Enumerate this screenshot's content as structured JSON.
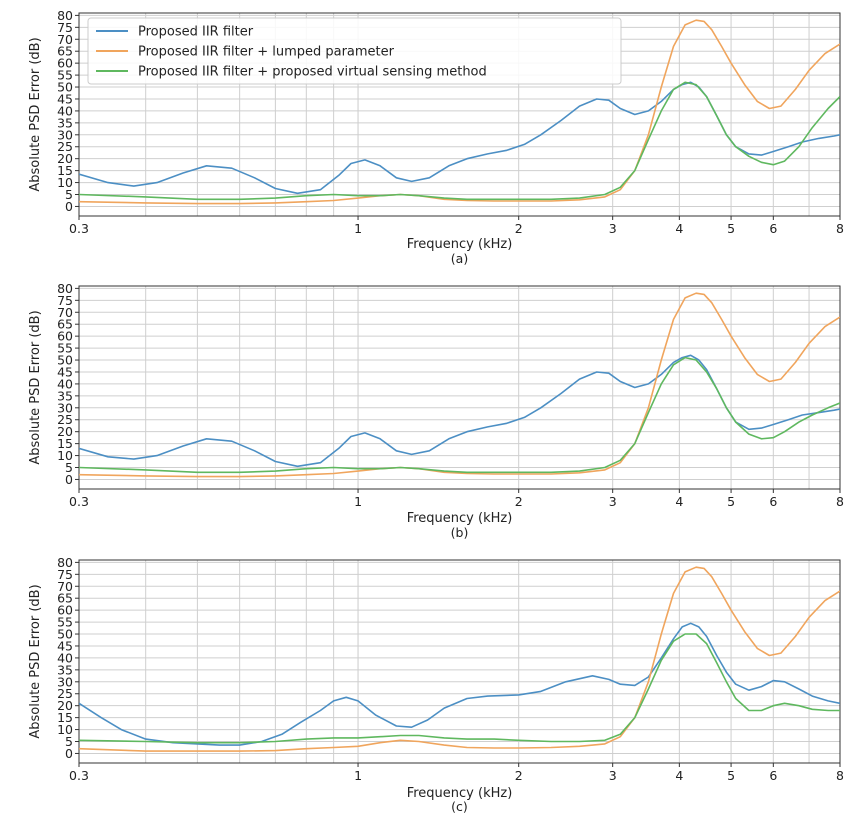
{
  "chart_data": [
    {
      "type": "line",
      "panel_label": "(a)",
      "xlabel": "Frequency (kHz)",
      "ylabel": "Absolute PSD Error (dB)",
      "xscale": "log",
      "xlim": [
        0.3,
        8
      ],
      "ylim": [
        -4,
        81
      ],
      "x_ticks": [
        "0.3",
        "1",
        "2",
        "3",
        "4",
        "5",
        "6",
        "8"
      ],
      "y_ticks": [
        0,
        5,
        10,
        15,
        20,
        25,
        30,
        35,
        40,
        45,
        50,
        55,
        60,
        65,
        70,
        75,
        80
      ],
      "grid": true,
      "legend": {
        "position": "top-left",
        "entries": [
          "Proposed IIR filter",
          "Proposed IIR filter + lumped parameter",
          " Proposed IIR filter + proposed virtual sensing method"
        ]
      },
      "series": [
        {
          "name": "Proposed IIR filter",
          "color": "#4c8fc4",
          "x": [
            0.3,
            0.34,
            0.38,
            0.42,
            0.47,
            0.52,
            0.58,
            0.64,
            0.7,
            0.77,
            0.85,
            0.92,
            0.97,
            1.03,
            1.1,
            1.18,
            1.26,
            1.36,
            1.48,
            1.6,
            1.75,
            1.9,
            2.05,
            2.2,
            2.4,
            2.6,
            2.8,
            2.95,
            3.1,
            3.3,
            3.5,
            3.7,
            3.9,
            4.05,
            4.2,
            4.35,
            4.5,
            4.7,
            4.9,
            5.1,
            5.4,
            5.7,
            6.0,
            6.4,
            6.8,
            7.3,
            7.8,
            8.0
          ],
          "y": [
            13.5,
            10,
            8.5,
            10,
            14,
            17,
            16,
            12,
            7.5,
            5.5,
            7,
            13,
            18,
            19.5,
            17,
            12,
            10.5,
            12,
            17,
            20,
            22,
            23.5,
            26,
            30,
            36,
            42,
            45,
            44.5,
            41,
            38.5,
            40,
            44,
            49,
            51,
            52,
            50,
            46,
            38,
            30,
            25,
            22,
            21.5,
            23,
            25,
            27,
            28.5,
            29.5,
            30
          ]
        },
        {
          "name": "Proposed IIR filter + lumped parameter",
          "color": "#f0a55d",
          "x": [
            0.3,
            0.4,
            0.5,
            0.6,
            0.7,
            0.8,
            0.9,
            1.0,
            1.1,
            1.2,
            1.3,
            1.45,
            1.6,
            1.8,
            2.0,
            2.3,
            2.6,
            2.9,
            3.1,
            3.3,
            3.5,
            3.7,
            3.9,
            4.1,
            4.3,
            4.45,
            4.6,
            4.8,
            5.0,
            5.3,
            5.6,
            5.9,
            6.2,
            6.6,
            7.0,
            7.5,
            8.0
          ],
          "y": [
            2,
            1.5,
            1.2,
            1.2,
            1.5,
            2,
            2.5,
            3.5,
            4.5,
            5,
            4.5,
            3,
            2.5,
            2.3,
            2.3,
            2.3,
            2.8,
            4,
            7,
            15,
            30,
            50,
            67,
            76,
            78,
            77.5,
            74,
            67,
            60,
            51,
            44,
            41,
            42,
            49,
            57,
            64,
            68
          ]
        },
        {
          "name": " Proposed IIR filter + proposed virtual sensing method",
          "color": "#5fb85f",
          "x": [
            0.3,
            0.4,
            0.5,
            0.6,
            0.7,
            0.8,
            0.9,
            1.0,
            1.1,
            1.2,
            1.3,
            1.45,
            1.6,
            1.8,
            2.0,
            2.3,
            2.6,
            2.9,
            3.1,
            3.3,
            3.5,
            3.7,
            3.9,
            4.1,
            4.3,
            4.5,
            4.7,
            4.9,
            5.1,
            5.4,
            5.7,
            6.0,
            6.3,
            6.7,
            7.1,
            7.6,
            8.0
          ],
          "y": [
            5,
            4,
            3,
            3,
            3.5,
            4.5,
            5,
            4.5,
            4.5,
            5,
            4.5,
            3.5,
            3,
            3,
            3,
            3,
            3.5,
            5,
            8,
            15,
            28,
            40,
            49,
            52,
            51,
            46,
            38,
            30,
            25,
            21,
            18.5,
            17.5,
            19,
            25,
            33,
            41,
            46
          ]
        }
      ]
    },
    {
      "type": "line",
      "panel_label": "(b)",
      "xlabel": "Frequency (kHz)",
      "ylabel": "Absolute PSD Error (dB)",
      "xscale": "log",
      "xlim": [
        0.3,
        8
      ],
      "ylim": [
        -4,
        81
      ],
      "x_ticks": [
        "0.3",
        "1",
        "2",
        "3",
        "4",
        "5",
        "6",
        "8"
      ],
      "y_ticks": [
        0,
        5,
        10,
        15,
        20,
        25,
        30,
        35,
        40,
        45,
        50,
        55,
        60,
        65,
        70,
        75,
        80
      ],
      "grid": true,
      "series": [
        {
          "name": "Proposed IIR filter",
          "color": "#4c8fc4",
          "x": [
            0.3,
            0.34,
            0.38,
            0.42,
            0.47,
            0.52,
            0.58,
            0.64,
            0.7,
            0.77,
            0.85,
            0.92,
            0.97,
            1.03,
            1.1,
            1.18,
            1.26,
            1.36,
            1.48,
            1.6,
            1.75,
            1.9,
            2.05,
            2.2,
            2.4,
            2.6,
            2.8,
            2.95,
            3.1,
            3.3,
            3.5,
            3.7,
            3.9,
            4.05,
            4.2,
            4.35,
            4.5,
            4.7,
            4.9,
            5.1,
            5.4,
            5.7,
            6.0,
            6.4,
            6.8,
            7.3,
            7.8,
            8.0
          ],
          "y": [
            13,
            9.5,
            8.5,
            10,
            14,
            17,
            16,
            12,
            7.5,
            5.5,
            7,
            13,
            18,
            19.5,
            17,
            12,
            10.5,
            12,
            17,
            20,
            22,
            23.5,
            26,
            30,
            36,
            42,
            45,
            44.5,
            41,
            38.5,
            40,
            44,
            49,
            51,
            52,
            50,
            46,
            38,
            30,
            24,
            21,
            21.5,
            23,
            25,
            27,
            28,
            29,
            29.5
          ]
        },
        {
          "name": "Proposed IIR filter + lumped parameter",
          "color": "#f0a55d",
          "x": [
            0.3,
            0.4,
            0.5,
            0.6,
            0.7,
            0.8,
            0.9,
            1.0,
            1.1,
            1.2,
            1.3,
            1.45,
            1.6,
            1.8,
            2.0,
            2.3,
            2.6,
            2.9,
            3.1,
            3.3,
            3.5,
            3.7,
            3.9,
            4.1,
            4.3,
            4.45,
            4.6,
            4.8,
            5.0,
            5.3,
            5.6,
            5.9,
            6.2,
            6.6,
            7.0,
            7.5,
            8.0
          ],
          "y": [
            2,
            1.5,
            1.2,
            1.2,
            1.5,
            2,
            2.5,
            3.5,
            4.5,
            5,
            4.5,
            3,
            2.5,
            2.3,
            2.3,
            2.3,
            2.8,
            4,
            7,
            15,
            30,
            50,
            67,
            76,
            78,
            77.5,
            74,
            67,
            60,
            51,
            44,
            41,
            42,
            49,
            57,
            64,
            68
          ]
        },
        {
          "name": " Proposed IIR filter + proposed virtual sensing method",
          "color": "#5fb85f",
          "x": [
            0.3,
            0.4,
            0.5,
            0.6,
            0.7,
            0.8,
            0.9,
            1.0,
            1.1,
            1.2,
            1.3,
            1.45,
            1.6,
            1.8,
            2.0,
            2.3,
            2.6,
            2.9,
            3.1,
            3.3,
            3.5,
            3.7,
            3.9,
            4.1,
            4.3,
            4.5,
            4.7,
            4.9,
            5.1,
            5.4,
            5.7,
            6.0,
            6.3,
            6.7,
            7.1,
            7.6,
            8.0
          ],
          "y": [
            5,
            4,
            3,
            3,
            3.5,
            4.5,
            5,
            4.5,
            4.5,
            5,
            4.5,
            3.5,
            3,
            3,
            3,
            3,
            3.5,
            5,
            8,
            15,
            28,
            40,
            48,
            51,
            50,
            45,
            38,
            30,
            24,
            19,
            17,
            17.5,
            20,
            24,
            27,
            30,
            32
          ]
        }
      ]
    },
    {
      "type": "line",
      "panel_label": "(c)",
      "xlabel": "Frequency (kHz)",
      "ylabel": "Absolute PSD Error (dB)",
      "xscale": "log",
      "xlim": [
        0.3,
        8
      ],
      "ylim": [
        -4,
        81
      ],
      "x_ticks": [
        "0.3",
        "1",
        "2",
        "3",
        "4",
        "5",
        "6",
        "8"
      ],
      "y_ticks": [
        0,
        5,
        10,
        15,
        20,
        25,
        30,
        35,
        40,
        45,
        50,
        55,
        60,
        65,
        70,
        75,
        80
      ],
      "grid": true,
      "series": [
        {
          "name": "Proposed IIR filter",
          "color": "#4c8fc4",
          "x": [
            0.3,
            0.33,
            0.36,
            0.4,
            0.45,
            0.5,
            0.55,
            0.6,
            0.66,
            0.72,
            0.78,
            0.85,
            0.9,
            0.95,
            1.0,
            1.08,
            1.18,
            1.26,
            1.35,
            1.45,
            1.6,
            1.75,
            2.0,
            2.2,
            2.45,
            2.75,
            2.95,
            3.1,
            3.3,
            3.5,
            3.7,
            3.9,
            4.05,
            4.2,
            4.35,
            4.5,
            4.7,
            4.9,
            5.1,
            5.4,
            5.7,
            6.0,
            6.3,
            6.7,
            7.1,
            7.6,
            8.0
          ],
          "y": [
            21,
            15,
            10,
            6,
            4.5,
            4,
            3.5,
            3.5,
            5,
            8,
            13,
            18,
            22,
            23.5,
            22,
            16,
            11.5,
            11,
            14,
            19,
            23,
            24,
            24.5,
            26,
            30,
            32.5,
            31,
            29,
            28.5,
            32,
            40,
            48,
            53,
            54.5,
            53,
            49,
            41,
            34,
            29,
            26.5,
            28,
            30.5,
            30,
            27,
            24,
            22,
            21
          ]
        },
        {
          "name": "Proposed IIR filter + lumped parameter",
          "color": "#f0a55d",
          "x": [
            0.3,
            0.4,
            0.5,
            0.6,
            0.7,
            0.8,
            0.9,
            1.0,
            1.1,
            1.2,
            1.3,
            1.45,
            1.6,
            1.8,
            2.0,
            2.3,
            2.6,
            2.9,
            3.1,
            3.3,
            3.5,
            3.7,
            3.9,
            4.1,
            4.3,
            4.45,
            4.6,
            4.8,
            5.0,
            5.3,
            5.6,
            5.9,
            6.2,
            6.6,
            7.0,
            7.5,
            8.0
          ],
          "y": [
            2,
            1,
            1,
            1,
            1.2,
            2,
            2.5,
            3,
            4.5,
            5.5,
            5,
            3.5,
            2.5,
            2.3,
            2.3,
            2.5,
            3,
            4,
            7,
            15,
            30,
            50,
            67,
            76,
            78,
            77.5,
            74,
            67,
            60,
            51,
            44,
            41,
            42,
            49,
            57,
            64,
            68
          ]
        },
        {
          "name": " Proposed IIR filter + proposed virtual sensing method",
          "color": "#5fb85f",
          "x": [
            0.3,
            0.4,
            0.5,
            0.6,
            0.7,
            0.8,
            0.9,
            1.0,
            1.1,
            1.2,
            1.3,
            1.45,
            1.6,
            1.8,
            2.0,
            2.3,
            2.6,
            2.9,
            3.1,
            3.3,
            3.5,
            3.7,
            3.9,
            4.1,
            4.3,
            4.5,
            4.7,
            4.9,
            5.1,
            5.4,
            5.7,
            6.0,
            6.3,
            6.7,
            7.1,
            7.6,
            8.0
          ],
          "y": [
            5.5,
            5,
            4.5,
            4.5,
            5,
            6,
            6.5,
            6.5,
            7,
            7.5,
            7.5,
            6.5,
            6,
            6,
            5.5,
            5,
            5,
            5.5,
            8,
            15,
            27,
            39,
            47,
            50,
            50,
            46,
            38,
            30,
            23,
            18,
            18,
            20,
            21,
            20,
            18.5,
            18,
            18
          ]
        }
      ]
    }
  ]
}
